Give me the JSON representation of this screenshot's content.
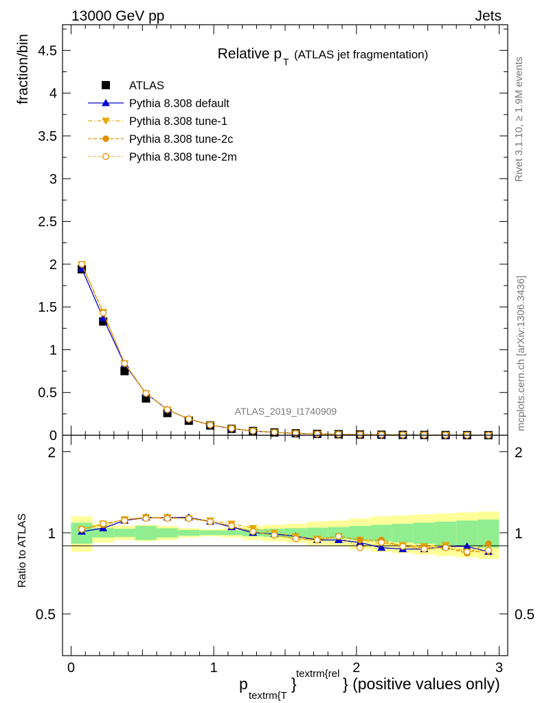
{
  "header": {
    "left": "13000 GeV pp",
    "right": "Jets"
  },
  "side_labels": {
    "rivet": "Rivet 3.1.10, ≥ 1.9M events",
    "mcplots": "mcplots.cern.ch [arXiv:1306.3436]"
  },
  "chart_data": [
    {
      "type": "scatter",
      "title_main": "Relative p",
      "title_sub": "T",
      "title_suffix": "(ATLAS jet fragmentation)",
      "ylabel": "fraction/bin",
      "analysis_label": "ATLAS_2019_I1740909",
      "ylim": [
        0,
        4.8
      ],
      "xlim": [
        -0.06,
        3.06
      ],
      "y_ticks": [
        "0",
        "0.5",
        "1",
        "1.5",
        "2",
        "2.5",
        "3",
        "3.5",
        "4",
        "4.5"
      ],
      "legend_position": "top-left",
      "x": [
        0.075,
        0.225,
        0.375,
        0.525,
        0.675,
        0.825,
        0.975,
        1.125,
        1.275,
        1.425,
        1.575,
        1.725,
        1.875,
        2.025,
        2.175,
        2.325,
        2.475,
        2.625,
        2.775,
        2.925
      ],
      "series": [
        {
          "name": "ATLAS",
          "color": "#000000",
          "marker": "square",
          "values": [
            1.94,
            1.33,
            0.75,
            0.43,
            0.26,
            0.17,
            0.115,
            0.075,
            0.05,
            0.033,
            0.023,
            0.016,
            0.012,
            0.0085,
            0.0062,
            0.0046,
            0.0034,
            0.0026,
            0.0019,
            0.0014
          ]
        },
        {
          "name": "Pythia 8.308 default",
          "color": "#0000cc",
          "marker": "triangle-up",
          "line": "solid",
          "values": [
            1.95,
            1.37,
            0.83,
            0.49,
            0.3,
            0.19,
            0.12,
            0.078,
            0.05,
            0.033,
            0.022,
            0.015,
            0.0112,
            0.0078,
            0.0055,
            0.004,
            0.003,
            0.0023,
            0.0017,
            0.0012
          ]
        },
        {
          "name": "Pythia 8.308 tune-1",
          "color": "#e6a800",
          "marker": "triangle-down",
          "line": "dashdot",
          "values": [
            2.0,
            1.44,
            0.84,
            0.49,
            0.3,
            0.19,
            0.121,
            0.08,
            0.051,
            0.033,
            0.022,
            0.015,
            0.0115,
            0.008,
            0.0057,
            0.0041,
            0.003,
            0.0023,
            0.0016,
            0.0012
          ]
        },
        {
          "name": "Pythia 8.308 tune-2c",
          "color": "#e09000",
          "marker": "circle",
          "line": "dashed",
          "values": [
            2.0,
            1.43,
            0.84,
            0.49,
            0.3,
            0.19,
            0.12,
            0.079,
            0.05,
            0.033,
            0.022,
            0.015,
            0.0115,
            0.008,
            0.0058,
            0.0041,
            0.003,
            0.0023,
            0.0016,
            0.0013
          ]
        },
        {
          "name": "Pythia 8.308 tune-2m",
          "color": "#e09000",
          "marker": "open-circle",
          "line": "dotted",
          "values": [
            2.0,
            1.43,
            0.84,
            0.49,
            0.3,
            0.19,
            0.12,
            0.079,
            0.05,
            0.033,
            0.022,
            0.015,
            0.0115,
            0.0075,
            0.0056,
            0.004,
            0.003,
            0.0023,
            0.0016,
            0.0012
          ]
        }
      ]
    },
    {
      "type": "scatter",
      "ylabel": "Ratio to ATLAS",
      "xlabel_main": "p",
      "xlabel_sub": "textrm{T",
      "xlabel_sup": "textrm{rel",
      "xlabel_brace": "}",
      "xlabel_suffix": "} (positive values only)",
      "ylim": [
        0.35,
        2.3
      ],
      "xlim": [
        -0.06,
        3.06
      ],
      "x_ticks": [
        "0",
        "1",
        "2",
        "3"
      ],
      "y_ticks": [
        "0.5",
        "1",
        "2"
      ],
      "x": [
        0.075,
        0.225,
        0.375,
        0.525,
        0.675,
        0.825,
        0.975,
        1.125,
        1.275,
        1.425,
        1.575,
        1.725,
        1.875,
        2.025,
        2.175,
        2.325,
        2.475,
        2.625,
        2.775,
        2.925
      ],
      "bands": {
        "stat_color": "#90ee90",
        "total_color": "#ffff99",
        "bin_edges": [
          0,
          0.15,
          0.3,
          0.45,
          0.6,
          0.75,
          0.9,
          1.05,
          1.2,
          1.35,
          1.5,
          1.65,
          1.8,
          1.95,
          2.1,
          2.25,
          2.4,
          2.55,
          2.7,
          2.85,
          3.0
        ],
        "stat_halfwidth": [
          0.09,
          0.04,
          0.035,
          0.06,
          0.04,
          0.025,
          0.02,
          0.02,
          0.03,
          0.035,
          0.04,
          0.045,
          0.05,
          0.06,
          0.07,
          0.08,
          0.09,
          0.1,
          0.11,
          0.12
        ],
        "total_halfwidth": [
          0.15,
          0.08,
          0.06,
          0.07,
          0.06,
          0.04,
          0.03,
          0.04,
          0.06,
          0.07,
          0.08,
          0.1,
          0.11,
          0.13,
          0.15,
          0.16,
          0.17,
          0.18,
          0.19,
          0.2
        ]
      },
      "series": [
        {
          "name": "Pythia 8.308 default",
          "color": "#0000cc",
          "marker": "triangle-up",
          "line": "solid",
          "values": [
            1.01,
            1.04,
            1.11,
            1.14,
            1.14,
            1.14,
            1.1,
            1.05,
            1.0,
            0.99,
            0.97,
            0.94,
            0.94,
            0.92,
            0.88,
            0.87,
            0.87,
            0.89,
            0.89,
            0.85
          ]
        },
        {
          "name": "Pythia 8.308 tune-1",
          "color": "#e6a800",
          "marker": "triangle-down",
          "line": "dashdot",
          "values": [
            1.03,
            1.08,
            1.12,
            1.14,
            1.14,
            1.13,
            1.11,
            1.08,
            1.04,
            1.0,
            0.97,
            0.95,
            0.97,
            0.94,
            0.92,
            0.9,
            0.89,
            0.9,
            0.85,
            0.85
          ]
        },
        {
          "name": "Pythia 8.308 tune-2c",
          "color": "#e09000",
          "marker": "circle",
          "line": "dashed",
          "values": [
            1.03,
            1.07,
            1.12,
            1.14,
            1.14,
            1.13,
            1.1,
            1.06,
            1.01,
            0.98,
            0.95,
            0.94,
            0.97,
            0.94,
            0.94,
            0.89,
            0.88,
            0.88,
            0.84,
            0.91
          ]
        },
        {
          "name": "Pythia 8.308 tune-2m",
          "color": "#e09000",
          "marker": "open-circle",
          "line": "dotted",
          "values": [
            1.03,
            1.08,
            1.11,
            1.13,
            1.13,
            1.13,
            1.1,
            1.06,
            1.01,
            0.98,
            0.95,
            0.94,
            0.97,
            0.88,
            0.92,
            0.89,
            0.87,
            0.88,
            0.85,
            0.86
          ]
        }
      ]
    }
  ]
}
